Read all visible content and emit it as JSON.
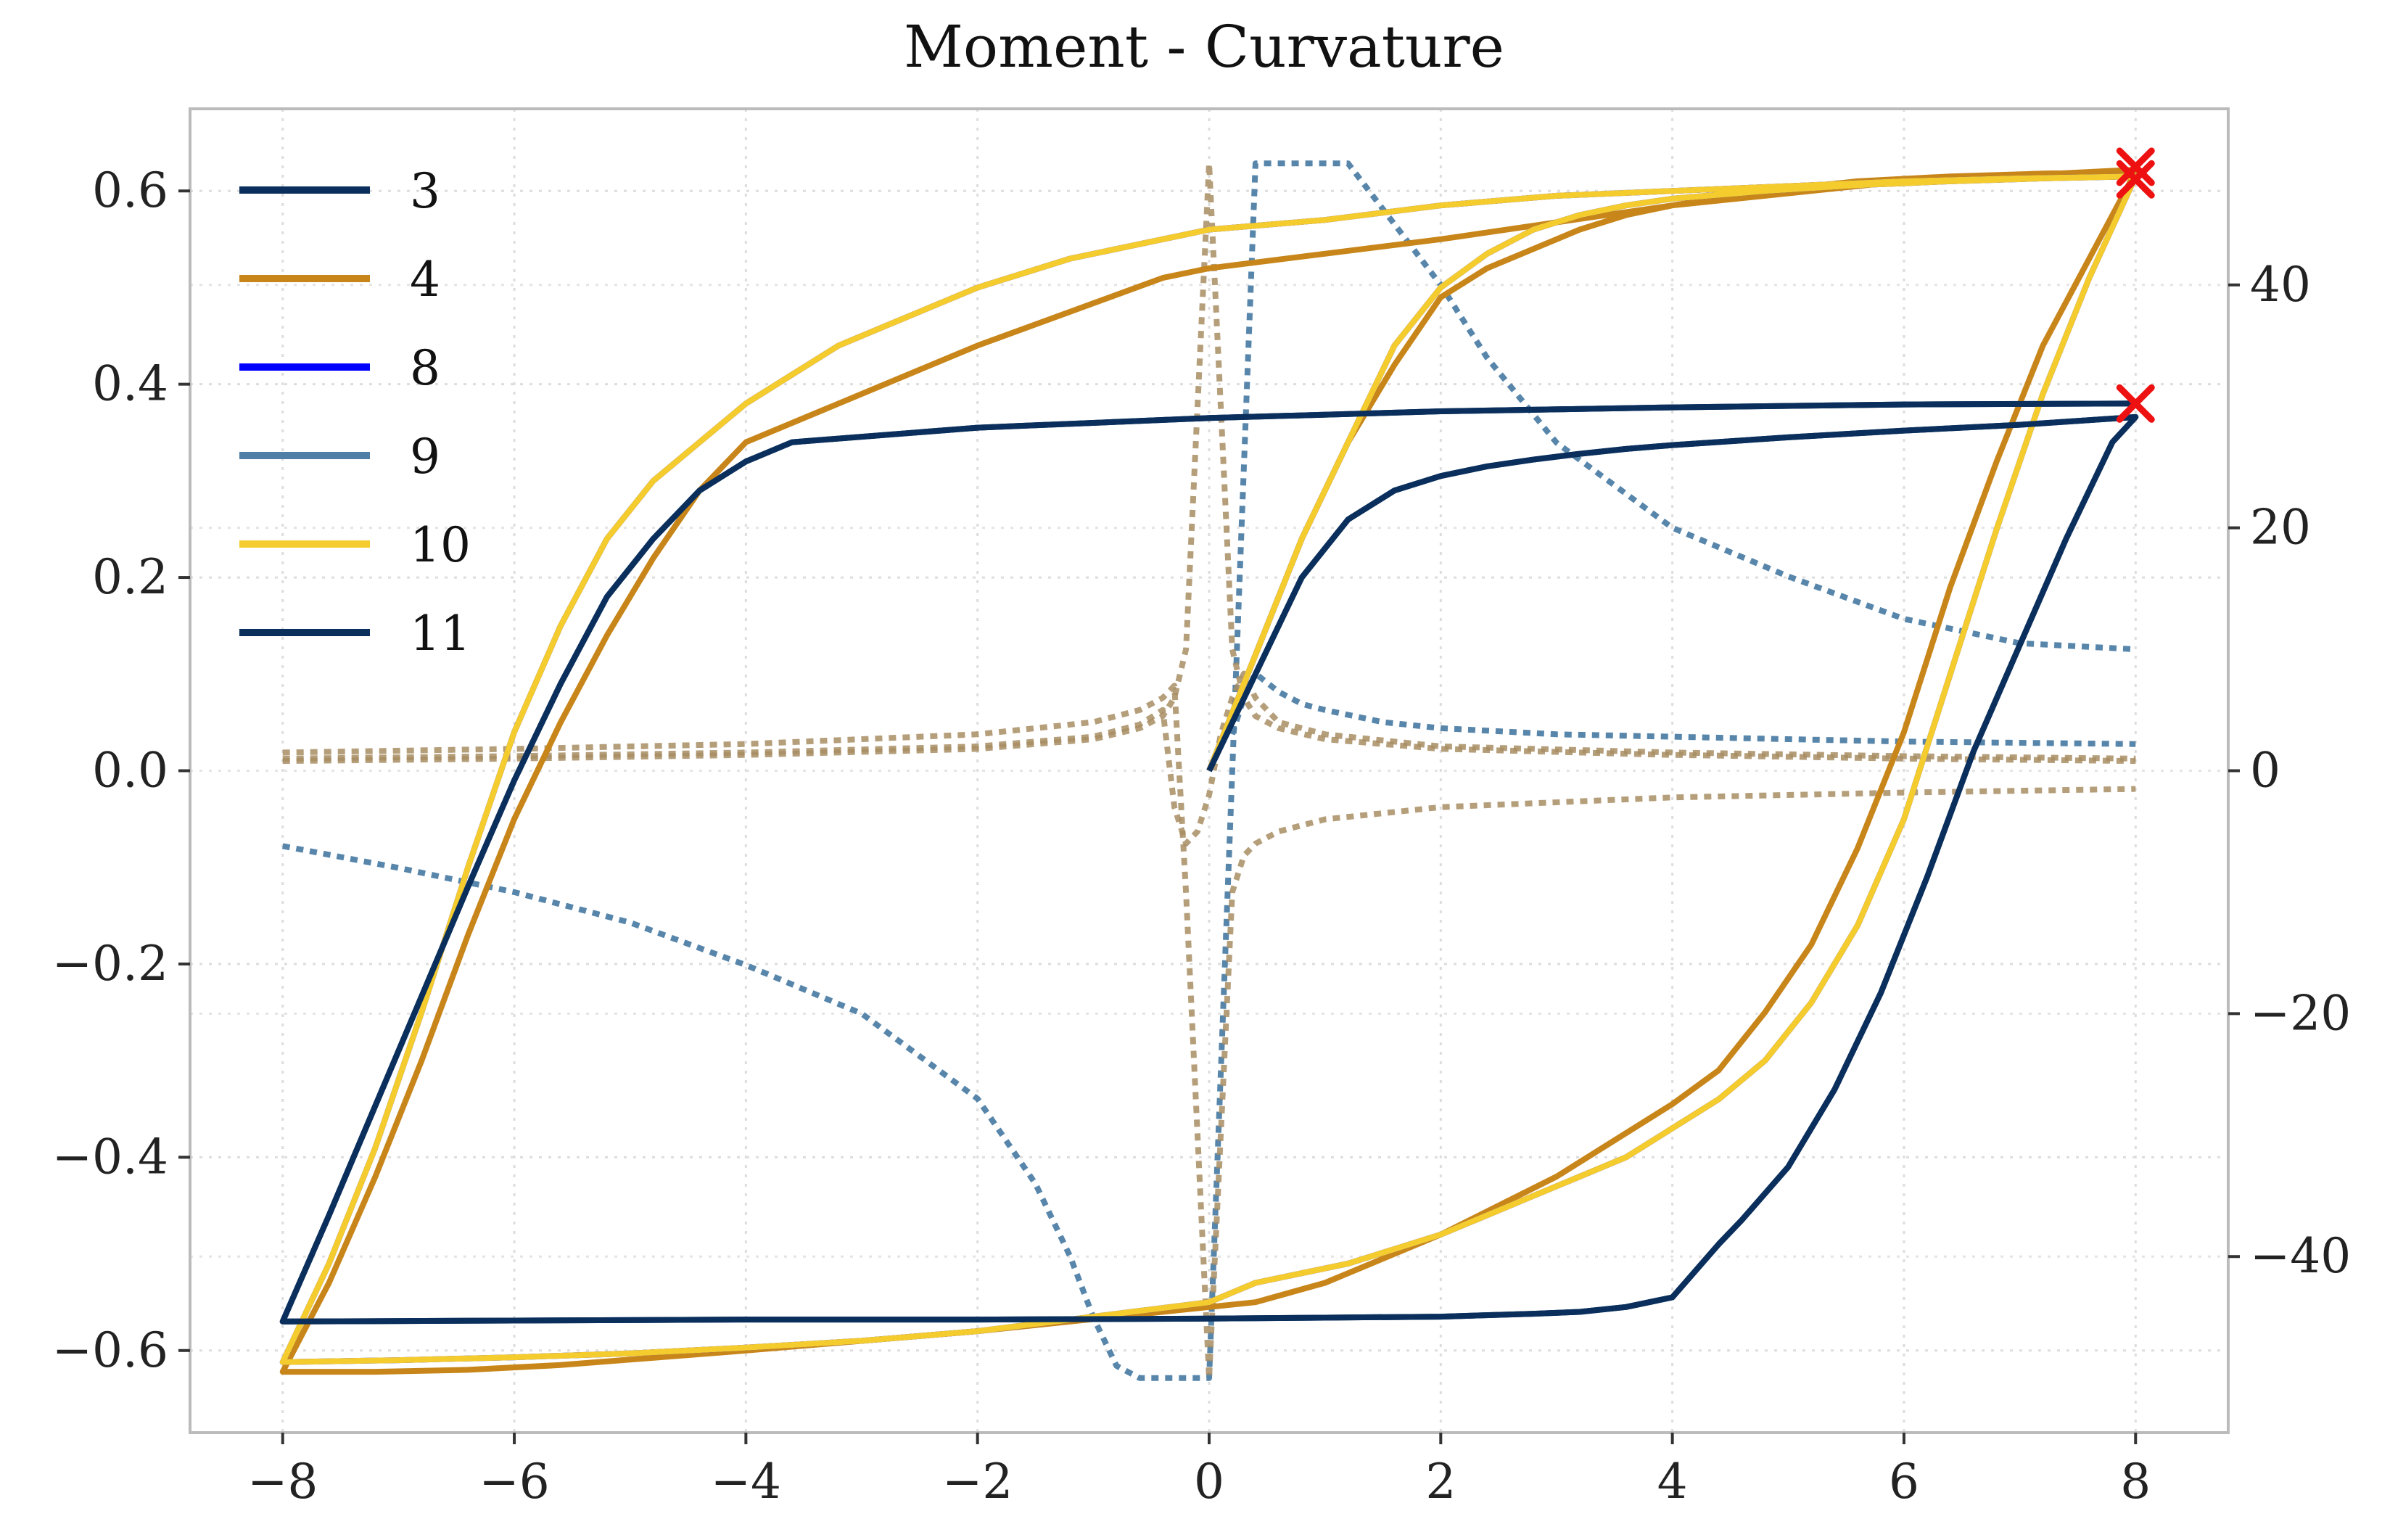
{
  "chart_data": {
    "type": "line",
    "title": "Moment - Curvature",
    "xlabel": "",
    "ylabel": "",
    "y2label": "",
    "xlim": [
      -8.8,
      8.8
    ],
    "ylim": [
      -0.685,
      0.685
    ],
    "y2lim": [
      -54.5,
      54.5
    ],
    "x_ticks": [
      -8,
      -6,
      -4,
      -2,
      0,
      2,
      4,
      6,
      8
    ],
    "x_tick_labels": [
      "−8",
      "−6",
      "−4",
      "−2",
      "0",
      "2",
      "4",
      "6",
      "8"
    ],
    "y_ticks": [
      -0.6,
      -0.4,
      -0.2,
      0.0,
      0.2,
      0.4,
      0.6
    ],
    "y_tick_labels": [
      "−0.6",
      "−0.4",
      "−0.2",
      "0.0",
      "0.2",
      "0.4",
      "0.6"
    ],
    "y2_ticks": [
      -40,
      -20,
      0,
      20,
      40
    ],
    "y2_tick_labels": [
      "−40",
      "−20",
      "0",
      "20",
      "40"
    ],
    "grid": true,
    "legend_position": "top-left",
    "series": [
      {
        "name": "3",
        "color": "#0a2f5c",
        "style": "solid",
        "axis": "left",
        "x": [
          0,
          0.4,
          0.8,
          1.2,
          1.6,
          2.0,
          2.4,
          2.8,
          3.2,
          3.6,
          4.0,
          5.0,
          6.0,
          7.0,
          8.0,
          7.8,
          7.4,
          7.0,
          6.6,
          6.2,
          5.8,
          5.4,
          5.0,
          4.6,
          4.4,
          4.0,
          3.6,
          3.2,
          2.8,
          2.0,
          1.0,
          0,
          -2,
          -4,
          -6,
          -8,
          -7.6,
          -7.0,
          -6.4,
          -6.0,
          -5.6,
          -5.2,
          -4.8,
          -4.4,
          -4.0,
          -3.6,
          -2.0,
          0,
          2,
          4,
          6,
          8
        ],
        "y": [
          0,
          0.1,
          0.2,
          0.26,
          0.29,
          0.305,
          0.315,
          0.322,
          0.328,
          0.333,
          0.337,
          0.345,
          0.352,
          0.358,
          0.366,
          0.34,
          0.24,
          0.13,
          0.02,
          -0.11,
          -0.23,
          -0.33,
          -0.41,
          -0.465,
          -0.49,
          -0.545,
          -0.555,
          -0.56,
          -0.562,
          -0.565,
          -0.566,
          -0.567,
          -0.568,
          -0.568,
          -0.569,
          -0.57,
          -0.46,
          -0.29,
          -0.12,
          -0.01,
          0.09,
          0.18,
          0.24,
          0.29,
          0.32,
          0.34,
          0.355,
          0.365,
          0.372,
          0.376,
          0.379,
          0.38
        ]
      },
      {
        "name": "4",
        "color": "#c8861a",
        "style": "solid",
        "axis": "left",
        "x": [
          0,
          0.4,
          0.8,
          1.2,
          1.6,
          2.0,
          2.4,
          2.8,
          3.2,
          3.6,
          4.0,
          4.8,
          5.6,
          6.4,
          7.2,
          8.0,
          7.6,
          7.2,
          6.8,
          6.4,
          6.0,
          5.6,
          5.2,
          4.8,
          4.4,
          4.0,
          3.0,
          2.0,
          1.0,
          0.4,
          0,
          -2,
          -4,
          -5.6,
          -6.4,
          -7.2,
          -8.0,
          -7.6,
          -7.2,
          -6.8,
          -6.4,
          -6.0,
          -5.6,
          -5.2,
          -4.8,
          -4.4,
          -4.0,
          -2.0,
          -0.4,
          0,
          2,
          4,
          6,
          8
        ],
        "y": [
          0,
          0.12,
          0.24,
          0.34,
          0.42,
          0.49,
          0.52,
          0.54,
          0.56,
          0.575,
          0.585,
          0.6,
          0.61,
          0.615,
          0.618,
          0.62,
          0.53,
          0.44,
          0.32,
          0.19,
          0.04,
          -0.08,
          -0.18,
          -0.25,
          -0.31,
          -0.345,
          -0.42,
          -0.48,
          -0.53,
          -0.55,
          -0.555,
          -0.58,
          -0.6,
          -0.615,
          -0.62,
          -0.622,
          -0.622,
          -0.53,
          -0.42,
          -0.3,
          -0.17,
          -0.05,
          0.05,
          0.14,
          0.22,
          0.29,
          0.34,
          0.44,
          0.51,
          0.52,
          0.55,
          0.585,
          0.61,
          0.622
        ]
      },
      {
        "name": "8",
        "color": "#0000ff",
        "style": "solid",
        "axis": "left",
        "x": [
          0,
          0.4,
          0.8,
          1.2,
          1.6,
          2.0,
          2.4,
          2.8,
          3.2,
          3.6,
          4.0,
          4.8,
          5.6,
          6.4,
          7.2,
          8.0,
          7.6,
          7.2,
          6.8,
          6.4,
          6.0,
          5.6,
          5.2,
          4.8,
          4.4,
          4.0,
          3.6,
          3.2,
          2.8,
          2.4,
          2.0,
          1.6,
          1.2,
          0.8,
          0.4,
          0,
          -1.0,
          -2.0,
          -3.0,
          -4.0,
          -5.0,
          -6.0,
          -7.0,
          -8.0,
          -7.6,
          -7.2,
          -6.8,
          -6.4,
          -6.0,
          -5.6,
          -5.2,
          -4.8,
          -4.4,
          -4.0,
          -3.6,
          -3.2,
          -2.8,
          -2.4,
          -2.0,
          -1.6,
          -1.2,
          -0.8,
          -0.4,
          0,
          1,
          2,
          3,
          4,
          5,
          6,
          7,
          8
        ],
        "y": [
          0,
          0.12,
          0.24,
          0.34,
          0.44,
          0.5,
          0.535,
          0.56,
          0.575,
          0.585,
          0.592,
          0.6,
          0.606,
          0.61,
          0.613,
          0.615,
          0.51,
          0.39,
          0.25,
          0.1,
          -0.05,
          -0.16,
          -0.24,
          -0.3,
          -0.34,
          -0.37,
          -0.4,
          -0.42,
          -0.44,
          -0.46,
          -0.48,
          -0.495,
          -0.51,
          -0.52,
          -0.53,
          -0.55,
          -0.565,
          -0.58,
          -0.59,
          -0.597,
          -0.603,
          -0.607,
          -0.61,
          -0.612,
          -0.51,
          -0.39,
          -0.25,
          -0.1,
          0.04,
          0.15,
          0.24,
          0.3,
          0.34,
          0.38,
          0.41,
          0.44,
          0.46,
          0.48,
          0.5,
          0.515,
          0.53,
          0.54,
          0.55,
          0.56,
          0.57,
          0.585,
          0.595,
          0.6,
          0.605,
          0.61,
          0.613,
          0.615
        ]
      },
      {
        "name": "9",
        "color": "#4f7fa6",
        "style": "dotted",
        "axis": "right",
        "x": [
          -8,
          -7,
          -6,
          -5,
          -4,
          -3,
          -2,
          -1.5,
          -1.2,
          -1.0,
          -0.8,
          -0.6,
          -0.4,
          -0.2,
          0,
          0.2,
          0.4,
          0.8,
          1.2,
          1.6,
          2.0,
          2.4,
          3.0,
          4.0,
          5.0,
          6.0,
          7.0,
          8.0
        ],
        "y": [
          -6.2,
          -8.0,
          -10.0,
          -12.5,
          -16.0,
          -20.0,
          -27.0,
          -34.0,
          -40.0,
          -45.0,
          -49.0,
          -50.0,
          -50.0,
          -50.0,
          -50.0,
          0,
          50.0,
          50.0,
          50.0,
          45.0,
          40.0,
          34.0,
          27.0,
          20.0,
          16.0,
          12.5,
          10.5,
          10.0
        ]
      },
      {
        "name": "10",
        "color": "#f5cc2e",
        "style": "solid",
        "axis": "left",
        "x": [
          0,
          0.4,
          0.8,
          1.2,
          1.6,
          2.0,
          2.4,
          2.8,
          3.2,
          3.6,
          4.0,
          4.8,
          5.6,
          6.4,
          7.2,
          8.0,
          7.6,
          7.2,
          6.8,
          6.4,
          6.0,
          5.6,
          5.2,
          4.8,
          4.4,
          4.0,
          3.6,
          3.2,
          2.8,
          2.4,
          2.0,
          1.6,
          1.2,
          0.8,
          0.4,
          0,
          -1.0,
          -2.0,
          -3.0,
          -4.0,
          -5.0,
          -6.0,
          -7.0,
          -8.0,
          -7.6,
          -7.2,
          -6.8,
          -6.4,
          -6.0,
          -5.6,
          -5.2,
          -4.8,
          -4.4,
          -4.0,
          -3.6,
          -3.2,
          -2.8,
          -2.4,
          -2.0,
          -1.6,
          -1.2,
          -0.8,
          -0.4,
          0,
          1,
          2,
          3,
          4,
          5,
          6,
          7,
          8
        ],
        "y": [
          0,
          0.12,
          0.24,
          0.34,
          0.44,
          0.5,
          0.535,
          0.56,
          0.575,
          0.585,
          0.592,
          0.6,
          0.606,
          0.61,
          0.613,
          0.615,
          0.51,
          0.39,
          0.25,
          0.1,
          -0.05,
          -0.16,
          -0.24,
          -0.3,
          -0.34,
          -0.37,
          -0.4,
          -0.42,
          -0.44,
          -0.46,
          -0.48,
          -0.495,
          -0.51,
          -0.52,
          -0.53,
          -0.55,
          -0.565,
          -0.58,
          -0.59,
          -0.597,
          -0.603,
          -0.607,
          -0.61,
          -0.612,
          -0.51,
          -0.39,
          -0.25,
          -0.1,
          0.04,
          0.15,
          0.24,
          0.3,
          0.34,
          0.38,
          0.41,
          0.44,
          0.46,
          0.48,
          0.5,
          0.515,
          0.53,
          0.54,
          0.55,
          0.56,
          0.57,
          0.585,
          0.595,
          0.6,
          0.605,
          0.61,
          0.613,
          0.615
        ]
      },
      {
        "name": "11",
        "color": "#0a2f5c",
        "style": "solid",
        "axis": "left",
        "x": [
          0,
          0.4,
          0.8,
          1.2,
          1.6,
          2.0,
          2.4,
          2.8,
          3.2,
          3.6,
          4.0,
          5.0,
          6.0,
          7.0,
          8.0,
          7.8,
          7.4,
          7.0,
          6.6,
          6.2,
          5.8,
          5.4,
          5.0,
          4.6,
          4.4,
          4.0,
          3.6,
          3.2,
          2.8,
          2.0,
          1.0,
          0,
          -2,
          -4,
          -6,
          -8,
          -7.6,
          -7.0,
          -6.4,
          -6.0,
          -5.6,
          -5.2,
          -4.8,
          -4.4,
          -4.0,
          -3.6,
          -2.0,
          0,
          2,
          4,
          6,
          8
        ],
        "y": [
          0,
          0.1,
          0.2,
          0.26,
          0.29,
          0.305,
          0.315,
          0.322,
          0.328,
          0.333,
          0.337,
          0.345,
          0.352,
          0.358,
          0.366,
          0.34,
          0.24,
          0.13,
          0.02,
          -0.11,
          -0.23,
          -0.33,
          -0.41,
          -0.465,
          -0.49,
          -0.545,
          -0.555,
          -0.56,
          -0.562,
          -0.565,
          -0.566,
          -0.567,
          -0.568,
          -0.568,
          -0.569,
          -0.57,
          -0.46,
          -0.29,
          -0.12,
          -0.01,
          0.09,
          0.18,
          0.24,
          0.29,
          0.32,
          0.34,
          0.355,
          0.365,
          0.372,
          0.376,
          0.379,
          0.38
        ]
      },
      {
        "name": "",
        "color": "#a88d63",
        "style": "dotted",
        "axis": "right",
        "x": [
          -8,
          -6,
          -4,
          -2,
          -1,
          -0.6,
          -0.4,
          -0.3,
          -0.2,
          -0.1,
          0,
          0.1,
          0.2,
          0.3,
          0.4,
          0.6,
          1,
          2,
          4,
          6,
          8
        ],
        "y": [
          0.8,
          1.0,
          1.3,
          1.8,
          2.6,
          3.5,
          4.5,
          6.0,
          10.0,
          30.0,
          50.0,
          30.0,
          10.0,
          6.0,
          4.5,
          3.5,
          2.6,
          1.8,
          1.3,
          1.0,
          0.8
        ]
      },
      {
        "name": "",
        "color": "#a88d63",
        "style": "dotted",
        "axis": "right",
        "x": [
          -8,
          -6,
          -4,
          -2,
          -1,
          -0.6,
          -0.4,
          -0.3,
          -0.2,
          -0.1,
          0,
          0.1,
          0.2,
          0.3,
          0.4,
          0.6,
          1,
          2,
          4,
          6,
          8
        ],
        "y": [
          1.5,
          1.8,
          2.2,
          3.0,
          4.0,
          5.0,
          6.0,
          7.0,
          -10.0,
          -30.0,
          -50.0,
          -30.0,
          -10.0,
          -7.0,
          -6.0,
          -5.0,
          -4.0,
          -3.0,
          -2.2,
          -1.8,
          -1.5
        ]
      },
      {
        "name": "",
        "color": "#a88d63",
        "style": "dotted",
        "axis": "right",
        "x": [
          -8,
          -6,
          -4,
          -2,
          -1,
          -0.6,
          -0.4,
          -0.3,
          -0.2,
          -0.1,
          0,
          0.1,
          0.2,
          0.3,
          0.4,
          0.6,
          1,
          2,
          4,
          6,
          8
        ],
        "y": [
          1.0,
          1.2,
          1.5,
          2.0,
          2.8,
          3.8,
          5.0,
          -3.0,
          -6.0,
          -5.0,
          -2.0,
          3.0,
          6.0,
          8.0,
          6.0,
          4.0,
          3.0,
          2.0,
          1.5,
          1.2,
          1.0
        ]
      },
      {
        "name": "",
        "color": "#4f7fa6",
        "style": "dotted",
        "axis": "right",
        "x": [
          0.2,
          0.3,
          0.4,
          0.6,
          0.8,
          1.0,
          1.5,
          2.0,
          3.0,
          4.0,
          5.0,
          6.0,
          7.0,
          8.0
        ],
        "y": [
          3.0,
          6.0,
          8.0,
          6.5,
          5.5,
          5.0,
          4.0,
          3.5,
          3.0,
          2.8,
          2.6,
          2.4,
          2.3,
          2.2
        ]
      }
    ],
    "markers": [
      {
        "x": 8.0,
        "y": 0.625,
        "symbol": "x",
        "color": "#ee1111"
      },
      {
        "x": 8.0,
        "y": 0.612,
        "symbol": "x",
        "color": "#ee1111"
      },
      {
        "x": 8.0,
        "y": 0.38,
        "symbol": "x",
        "color": "#ee1111"
      }
    ]
  }
}
